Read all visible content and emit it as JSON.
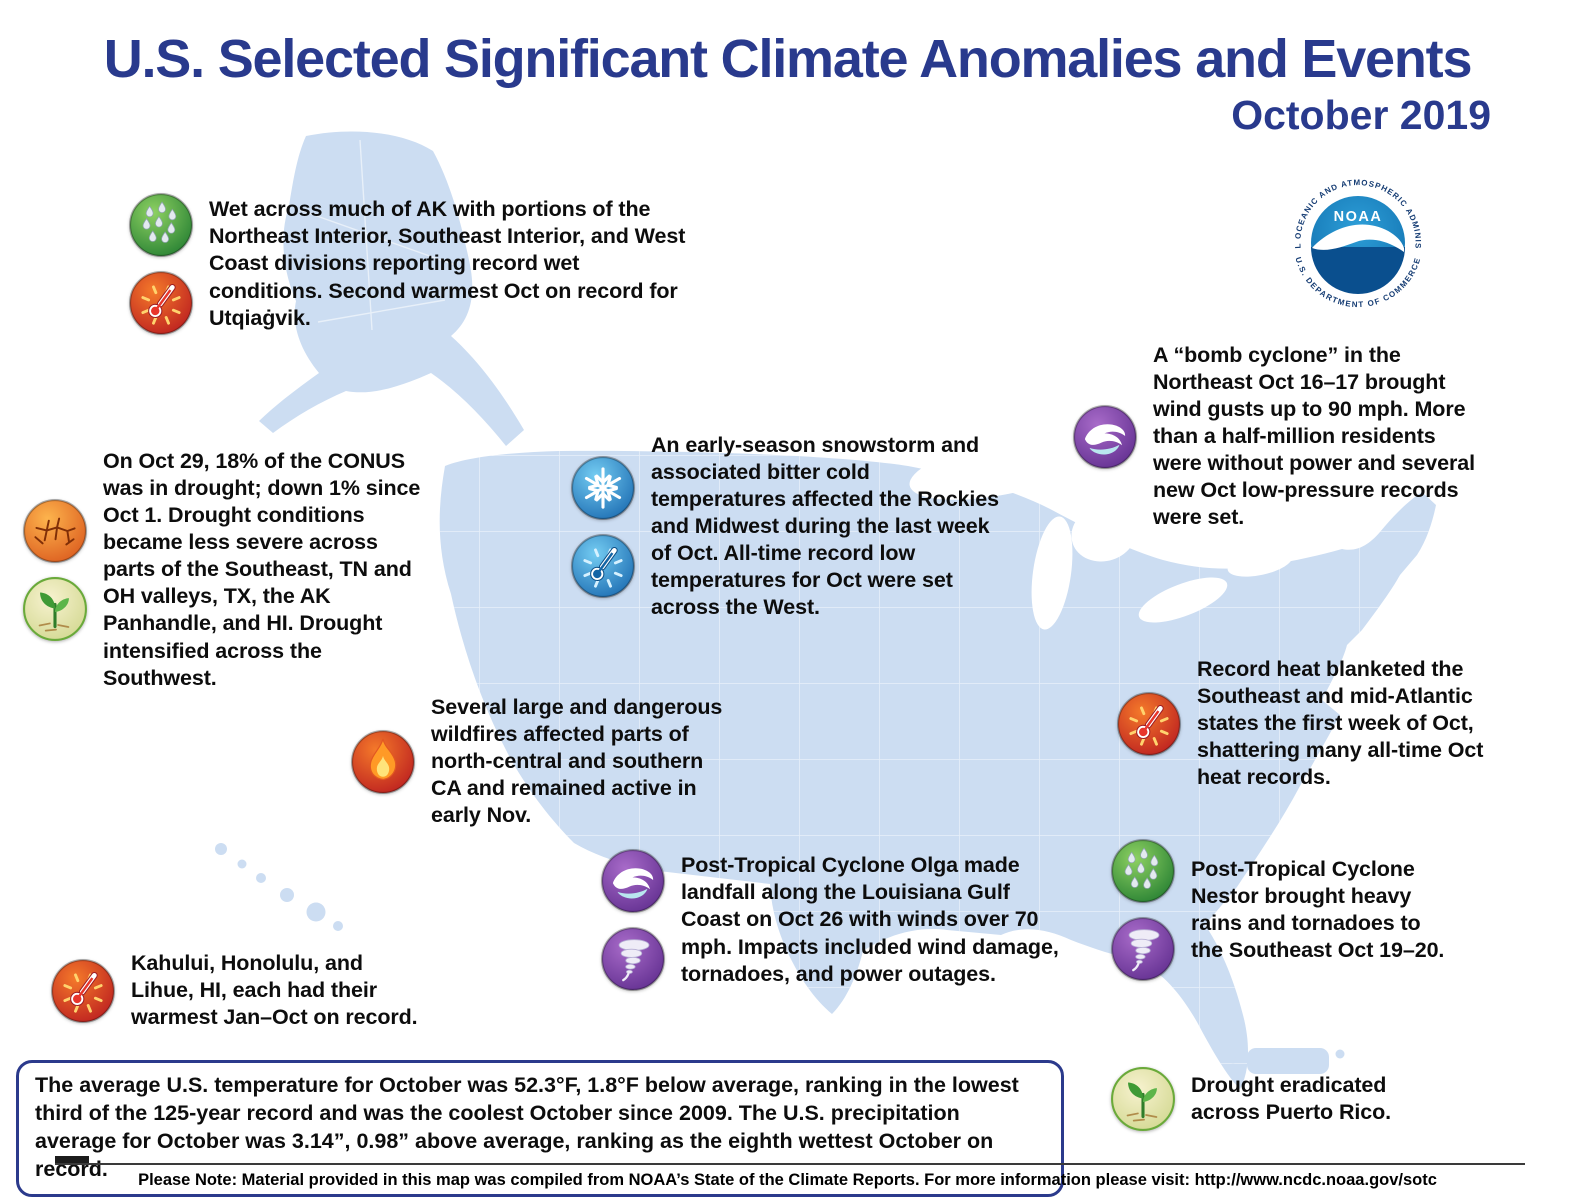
{
  "header": {
    "title": "U.S. Selected Significant Climate Anomalies and Events",
    "subtitle": "October 2019"
  },
  "logo": {
    "agency": "NOAA",
    "ring_top": "NATIONAL OCEANIC AND ATMOSPHERIC ADMINISTRATION",
    "ring_bottom": "U.S. DEPARTMENT OF COMMERCE"
  },
  "callouts": {
    "alaska": {
      "icons": [
        "heavy-rain",
        "warm-thermometer"
      ],
      "text": "Wet across much of AK with portions of the Northeast Interior, Southeast Interior, and West Coast divisions reporting record wet conditions. Second warmest Oct on record for Utqiaġvik."
    },
    "drought": {
      "icons": [
        "drought",
        "drought-improvement"
      ],
      "text": "On Oct 29, 18% of the CONUS was in drought; down 1% since Oct 1. Drought conditions became less severe across parts of the Southeast, TN and OH valleys, TX, the AK Panhandle, and HI. Drought intensified across the Southwest."
    },
    "snowstorm": {
      "icons": [
        "snowflake",
        "cold-thermometer"
      ],
      "text": "An early-season snowstorm and associated bitter cold temperatures affected the Rockies and Midwest during the last week of Oct. All-time record low temperatures for Oct were set across the West."
    },
    "bomb_cyclone": {
      "icons": [
        "cyclone"
      ],
      "text": "A “bomb cyclone” in the Northeast Oct 16–17 brought wind gusts up to 90 mph. More than a half-million residents were without power and several new Oct low-pressure records were set."
    },
    "record_heat": {
      "icons": [
        "warm-thermometer"
      ],
      "text": "Record heat blanketed the Southeast and mid-Atlantic states the first week of Oct, shattering many all-time Oct heat records."
    },
    "wildfires": {
      "icons": [
        "wildfire"
      ],
      "text": "Several large and dangerous wildfires affected parts of north-central and southern CA and remained active in early Nov."
    },
    "olga": {
      "icons": [
        "cyclone",
        "tornado"
      ],
      "text": "Post-Tropical Cyclone Olga made landfall along the Louisiana Gulf Coast on Oct 26 with winds over 70 mph. Impacts included wind damage, tornadoes, and power outages."
    },
    "nestor": {
      "icons": [
        "heavy-rain",
        "tornado"
      ],
      "text": "Post-Tropical Cyclone Nestor brought heavy rains and tornadoes to the Southeast Oct 19–20."
    },
    "hawaii": {
      "icons": [
        "warm-thermometer"
      ],
      "text": "Kahului, Honolulu, and Lihue, HI, each had their warmest Jan–Oct on record."
    },
    "puerto_rico": {
      "icons": [
        "drought-improvement"
      ],
      "text": "Drought eradicated across Puerto Rico."
    }
  },
  "summary": "The average U.S. temperature for October was 52.3°F, 1.8°F below average, ranking in the lowest third of the 125-year record and was the coolest October since 2009. The U.S. precipitation average for October was 3.14”, 0.98” above average, ranking as the eighth wettest October on record.",
  "footer": "Please Note: Material provided in this map was compiled from NOAA’s State of the Climate Reports. For more information please visit: http://www.ncdc.noaa.gov/sotc",
  "colors": {
    "title_blue": "#293a8d",
    "map_fill": "#ccddf2",
    "icon_green": "#1f7a2f",
    "icon_red": "#b8191f",
    "icon_blue": "#1767ae",
    "icon_purple": "#5d2b8c",
    "icon_orange": "#d9561b",
    "icon_tan": "#cdd488"
  }
}
